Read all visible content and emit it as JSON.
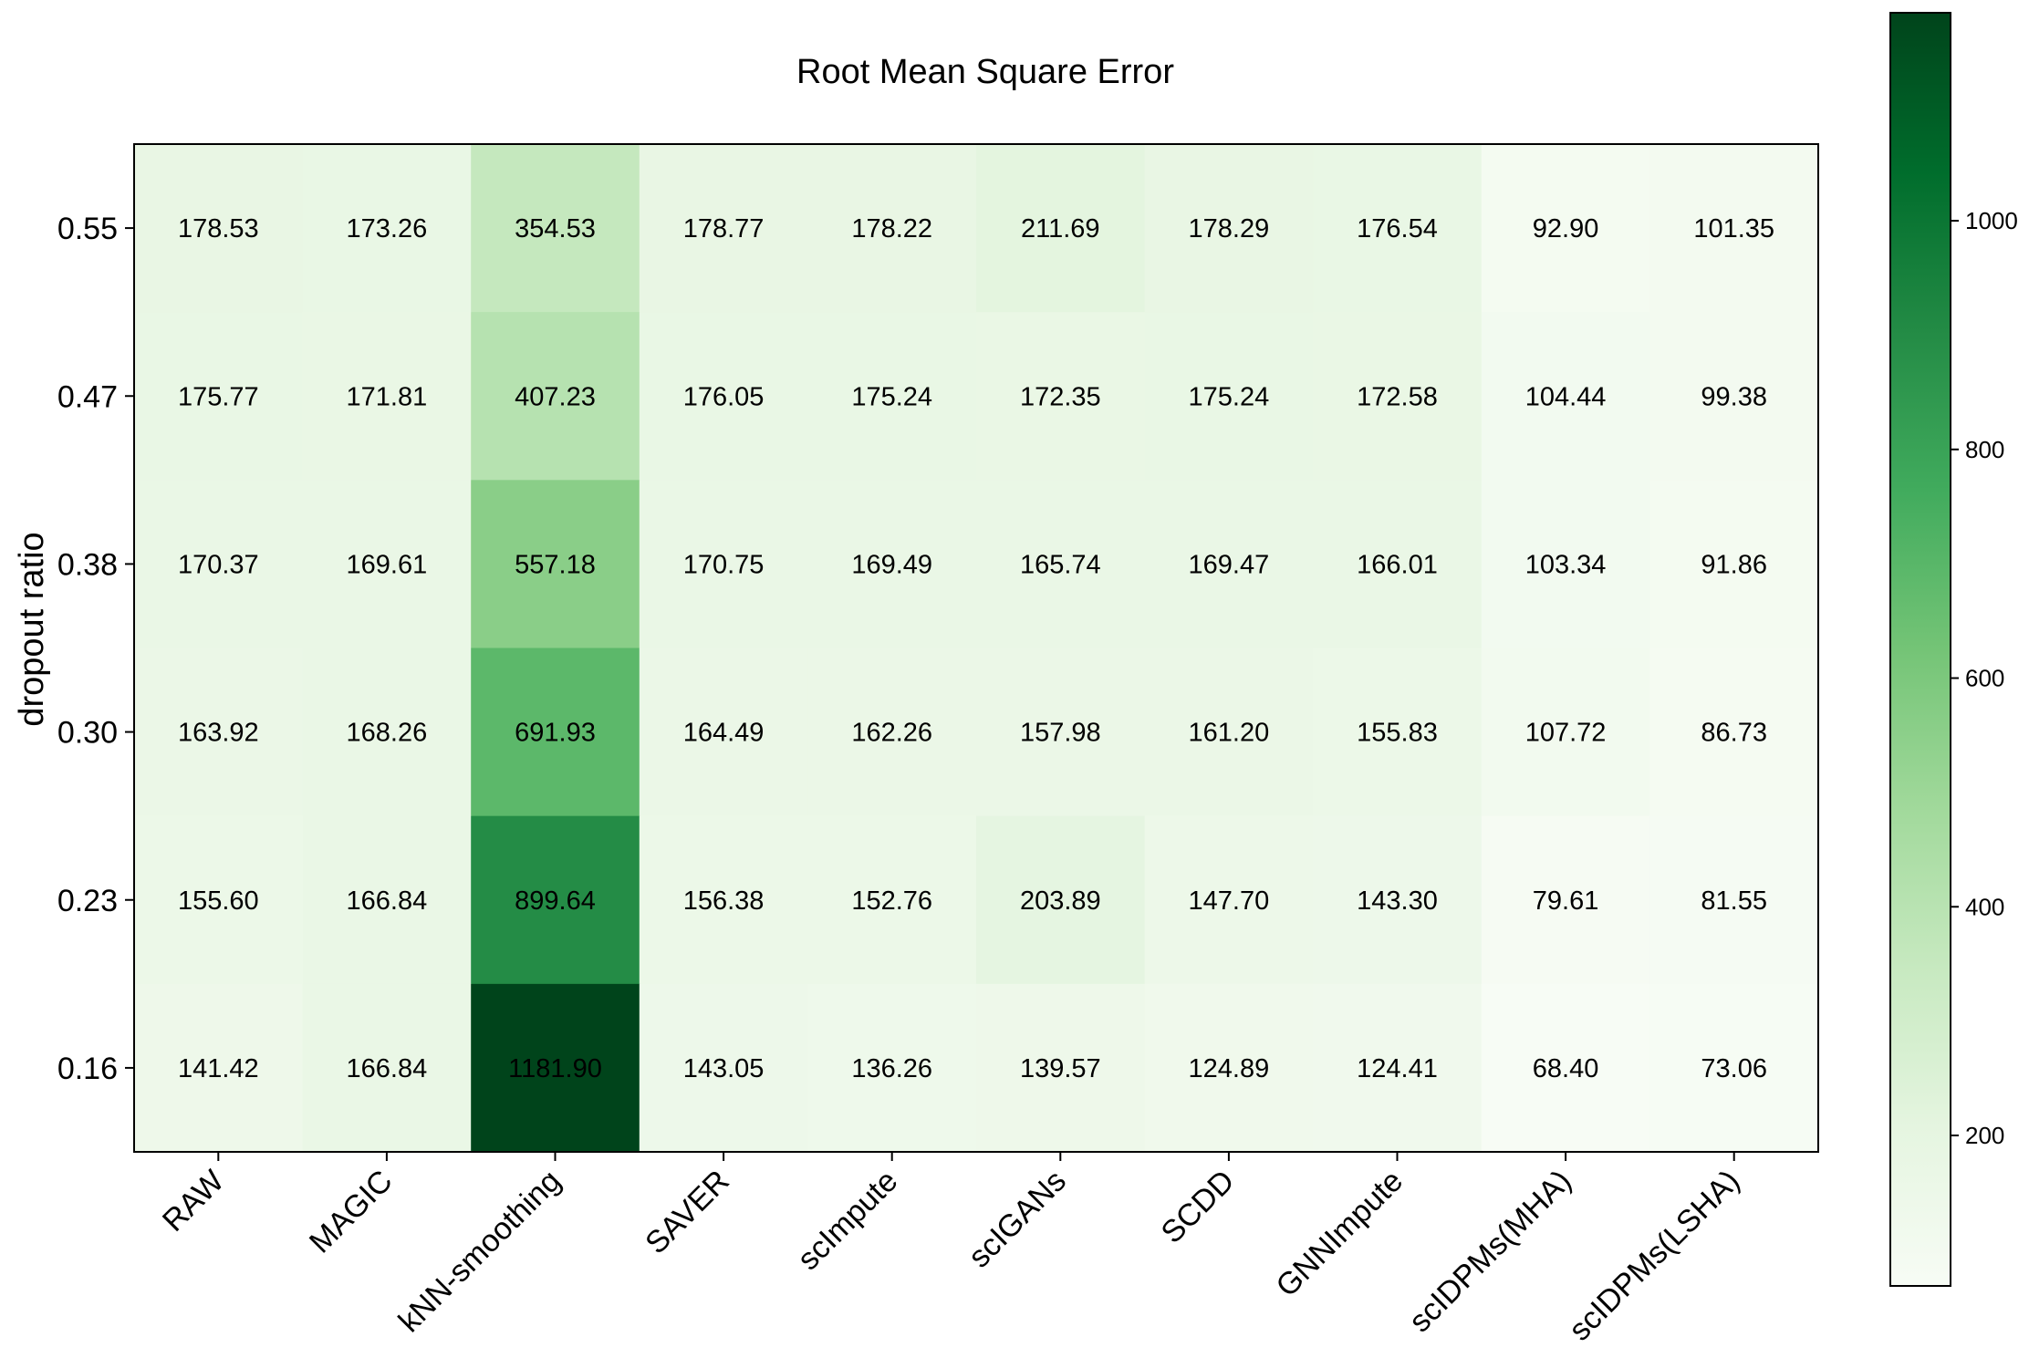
{
  "chart_data": {
    "type": "heatmap",
    "title": "Root Mean Square Error",
    "xlabel": "",
    "ylabel": "dropout ratio",
    "colormap": "Greens",
    "x_categories": [
      "RAW",
      "MAGIC",
      "kNN-smoothing",
      "SAVER",
      "scImpute",
      "scIGANs",
      "SCDD",
      "GNNImpute",
      "scIDPMs(MHA)",
      "scIDPMs(LSHA)"
    ],
    "y_categories": [
      "0.55",
      "0.47",
      "0.38",
      "0.30",
      "0.23",
      "0.16"
    ],
    "values": [
      [
        178.53,
        173.26,
        354.53,
        178.77,
        178.22,
        211.69,
        178.29,
        176.54,
        92.9,
        101.35
      ],
      [
        175.77,
        171.81,
        407.23,
        176.05,
        175.24,
        172.35,
        175.24,
        172.58,
        104.44,
        99.38
      ],
      [
        170.37,
        169.61,
        557.18,
        170.75,
        169.49,
        165.74,
        169.47,
        166.01,
        103.34,
        91.86
      ],
      [
        163.92,
        168.26,
        691.93,
        164.49,
        162.26,
        157.98,
        161.2,
        155.83,
        107.72,
        86.73
      ],
      [
        155.6,
        166.84,
        899.64,
        156.38,
        152.76,
        203.89,
        147.7,
        143.3,
        79.61,
        81.55
      ],
      [
        141.42,
        166.84,
        1181.9,
        143.05,
        136.26,
        139.57,
        124.89,
        124.41,
        68.4,
        73.06
      ]
    ],
    "labels": [
      [
        "178.53",
        "173.26",
        "354.53",
        "178.77",
        "178.22",
        "211.69",
        "178.29",
        "176.54",
        "92.90",
        "101.35"
      ],
      [
        "175.77",
        "171.81",
        "407.23",
        "176.05",
        "175.24",
        "172.35",
        "175.24",
        "172.58",
        "104.44",
        "99.38"
      ],
      [
        "170.37",
        "169.61",
        "557.18",
        "170.75",
        "169.49",
        "165.74",
        "169.47",
        "166.01",
        "103.34",
        "91.86"
      ],
      [
        "163.92",
        "168.26",
        "691.93",
        "164.49",
        "162.26",
        "157.98",
        "161.20",
        "155.83",
        "107.72",
        "86.73"
      ],
      [
        "155.60",
        "166.84",
        "899.64",
        "156.38",
        "152.76",
        "203.89",
        "147.70",
        "143.30",
        "79.61",
        "81.55"
      ],
      [
        "141.42",
        "166.84",
        "1181.90",
        "143.05",
        "136.26",
        "139.57",
        "124.89",
        "124.41",
        "68.40",
        "73.06"
      ]
    ],
    "colorbar": {
      "range": [
        68.4,
        1181.9
      ],
      "ticks": [
        200,
        400,
        600,
        800,
        1000
      ],
      "tick_labels": [
        "200",
        "400",
        "600",
        "800",
        "1000"
      ]
    },
    "grid": false,
    "legend": "none"
  }
}
